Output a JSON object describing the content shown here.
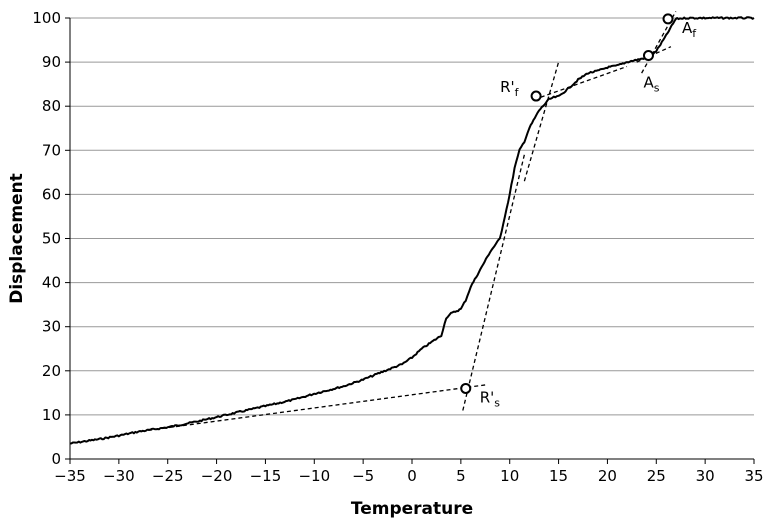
{
  "chart_data": {
    "type": "line",
    "title": "",
    "xlabel": "Temperature",
    "ylabel": "Displacement",
    "xlim": [
      -35,
      35
    ],
    "ylim": [
      0,
      100
    ],
    "x_ticks": [
      -35,
      -30,
      -25,
      -20,
      -15,
      -10,
      -5,
      0,
      5,
      10,
      15,
      20,
      25,
      30,
      35
    ],
    "y_ticks": [
      0,
      10,
      20,
      30,
      40,
      50,
      60,
      70,
      80,
      90,
      100
    ],
    "x_tick_labels": [
      "−35",
      "−30",
      "−25",
      "−20",
      "−15",
      "−10",
      "−5",
      "0",
      "5",
      "10",
      "15",
      "20",
      "25",
      "30",
      "35"
    ],
    "y_tick_labels": [
      "0",
      "10",
      "20",
      "30",
      "40",
      "50",
      "60",
      "70",
      "80",
      "90",
      "100"
    ],
    "grid": "horizontal",
    "legend": "none",
    "colors": {
      "curve": "#000000",
      "tangent": "#000000",
      "grid": "#999999",
      "axis": "#000000"
    },
    "series": [
      {
        "style": "solid",
        "x": [
          -35,
          -32,
          -30,
          -28,
          -25,
          -22,
          -20,
          -17,
          -15,
          -12,
          -10,
          -7,
          -5,
          -3,
          -1,
          0,
          1,
          2,
          3,
          3.5,
          4,
          5,
          5.5,
          6,
          7,
          8,
          9,
          9.5,
          10,
          10.5,
          11,
          11.5,
          12,
          13,
          14,
          14.5,
          15,
          16,
          17,
          18,
          19,
          20,
          21,
          22,
          23,
          24,
          24.5,
          25,
          26,
          27,
          28,
          30,
          32,
          34,
          35
        ],
        "y": [
          3.5,
          4.5,
          5.3,
          6.2,
          7.2,
          8.5,
          9.5,
          11,
          12,
          13.5,
          14.8,
          16.5,
          18,
          19.8,
          21.5,
          23,
          25,
          26.5,
          28,
          32,
          33,
          34,
          36,
          39,
          43,
          47,
          50,
          55,
          60,
          66,
          70,
          72,
          75,
          79,
          81.5,
          82,
          82.2,
          84,
          86,
          87.5,
          88,
          88.8,
          89.2,
          90,
          90.5,
          91,
          91.5,
          92.5,
          96,
          99.8,
          100,
          100,
          100,
          100,
          100
        ]
      }
    ],
    "tangent_lines": [
      {
        "style": "dashed",
        "x": [
          -27,
          7.5
        ],
        "y": [
          6.5,
          16.8
        ]
      },
      {
        "style": "dashed",
        "x": [
          5.2,
          11.5
        ],
        "y": [
          11,
          69
        ]
      },
      {
        "style": "dashed",
        "x": [
          11.5,
          15
        ],
        "y": [
          63,
          90
        ]
      },
      {
        "style": "dashed",
        "x": [
          12.5,
          22
        ],
        "y": [
          81.5,
          89
        ]
      },
      {
        "style": "dashed",
        "x": [
          23,
          26.5
        ],
        "y": [
          90,
          93.5
        ]
      },
      {
        "style": "dashed",
        "x": [
          23.5,
          27
        ],
        "y": [
          87.5,
          101.5
        ]
      }
    ],
    "marked_points": [
      {
        "x": 5.5,
        "y": 16,
        "label": "R'",
        "subscript": "s",
        "label_side": "bottom-right"
      },
      {
        "x": 12.7,
        "y": 82.3,
        "label": "R'",
        "subscript": "f",
        "label_side": "left"
      },
      {
        "x": 24.2,
        "y": 91.5,
        "label": "A",
        "subscript": "s",
        "label_side": "bottom"
      },
      {
        "x": 26.2,
        "y": 99.8,
        "label": "A",
        "subscript": "f",
        "label_side": "bottom-right"
      }
    ]
  }
}
